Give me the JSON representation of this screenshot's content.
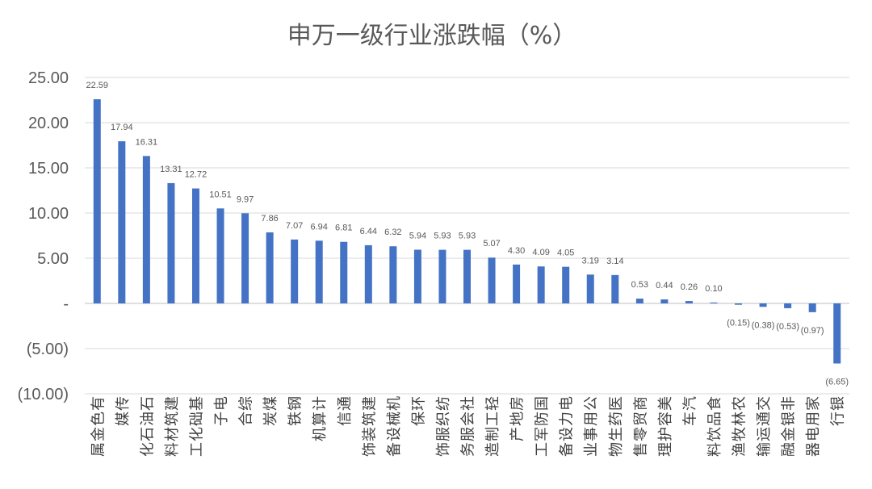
{
  "chart_data": {
    "type": "bar",
    "title": "申万一级行业涨跌幅（%）",
    "xlabel": "",
    "ylabel": "",
    "ylim": [
      -10,
      25
    ],
    "yticks": [
      25,
      20,
      15,
      10,
      5,
      0,
      -5,
      -10
    ],
    "ytick_labels": [
      "25.00",
      "20.00",
      "15.00",
      "10.00",
      "5.00",
      "-",
      "(5.00)",
      "(10.00)"
    ],
    "grid": true,
    "legend": "none",
    "bar_color": "#4472c4",
    "categories": [
      "有色金属",
      "传媒",
      "石油石化",
      "建筑材料",
      "基础化工",
      "电子",
      "综合",
      "煤炭",
      "钢铁",
      "计算机",
      "通信",
      "建筑装饰",
      "机械设备",
      "环保",
      "纺织服饰",
      "社会服务",
      "轻工制造",
      "房地产",
      "国防军工",
      "电力设备",
      "公用事业",
      "医药生物",
      "商贸零售",
      "美容护理",
      "汽车",
      "食品饮料",
      "农林牧渔",
      "交通运输",
      "非银金融",
      "家用电器",
      "银行"
    ],
    "values": [
      22.59,
      17.94,
      16.31,
      13.31,
      12.72,
      10.51,
      9.97,
      7.86,
      7.07,
      6.94,
      6.81,
      6.44,
      6.32,
      5.94,
      5.93,
      5.93,
      5.07,
      4.3,
      4.09,
      4.05,
      3.19,
      3.14,
      0.53,
      0.44,
      0.26,
      0.1,
      -0.15,
      -0.38,
      -0.53,
      -0.97,
      -6.65
    ],
    "data_labels": [
      "22.59",
      "17.94",
      "16.31",
      "13.31",
      "12.72",
      "10.51",
      "9.97",
      "7.86",
      "7.07",
      "6.94",
      "6.81",
      "6.44",
      "6.32",
      "5.94",
      "5.93",
      "5.93",
      "5.07",
      "4.30",
      "4.09",
      "4.05",
      "3.19",
      "3.14",
      "0.53",
      "0.44",
      "0.26",
      "0.10",
      "(0.15)",
      "(0.38)",
      "(0.53)",
      "(0.97)",
      "(6.65)"
    ]
  }
}
